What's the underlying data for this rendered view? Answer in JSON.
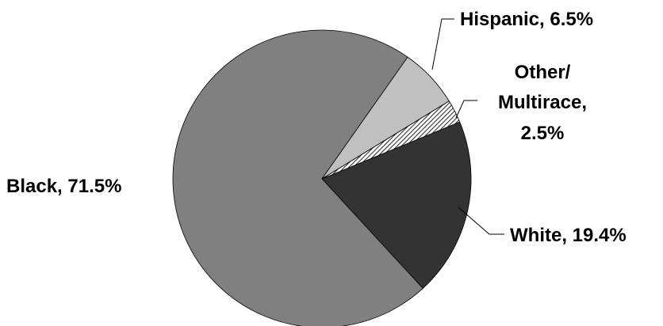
{
  "chart_data": {
    "type": "pie",
    "start_angle_deg": 90,
    "direction": "clockwise",
    "legend": "none",
    "slices": [
      {
        "key": "white",
        "label_lines": [
          "White, 19.4%"
        ],
        "value": 19.4,
        "color": "#333333",
        "pattern": "none"
      },
      {
        "key": "black",
        "label_lines": [
          "Black, 71.5%"
        ],
        "value": 71.5,
        "color": "#808080",
        "pattern": "none"
      },
      {
        "key": "hispanic",
        "label_lines": [
          "Hispanic, 6.5%"
        ],
        "value": 6.5,
        "color": "#c0c0c0",
        "pattern": "none"
      },
      {
        "key": "other",
        "label_lines": [
          "Other/",
          "Multirace,",
          "2.5%"
        ],
        "value": 2.5,
        "color": "#808080",
        "pattern": "diagonal-hatch"
      }
    ]
  }
}
